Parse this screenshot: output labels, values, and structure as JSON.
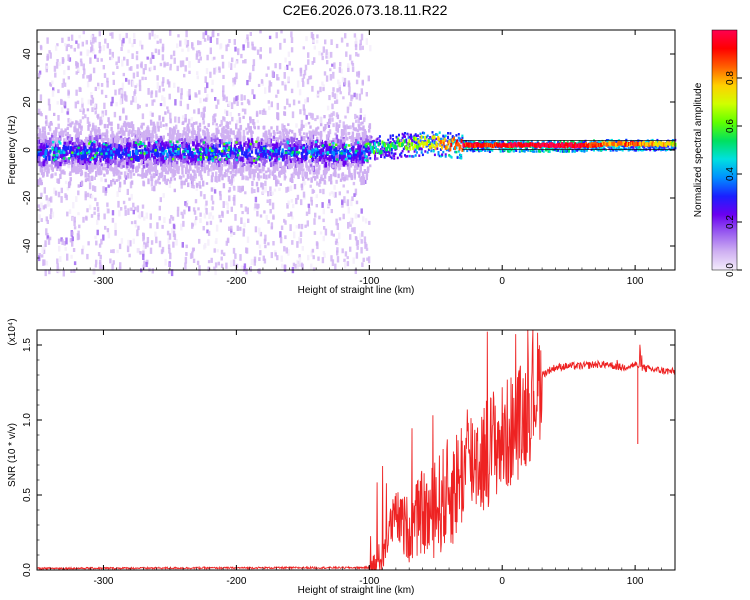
{
  "title": "C2E6.2026.073.18.11.R22",
  "chart_data": [
    {
      "type": "heatmap",
      "xlabel": "Height of straight line (km)",
      "ylabel": "Frequency (Hz)",
      "xlim": [
        -350,
        130
      ],
      "ylim": [
        -50,
        50
      ],
      "x_ticks": [
        -300,
        -200,
        -100,
        0,
        100
      ],
      "y_ticks": [
        -40,
        -20,
        0,
        20,
        40
      ],
      "colorbar": {
        "label": "Normalized spectral amplitude",
        "range": [
          0,
          1
        ],
        "ticks": [
          "0.0",
          "0.2",
          "0.4",
          "0.6",
          "0.8"
        ],
        "colors": [
          "#f4ecfb",
          "#cfb0f2",
          "#9a5ef0",
          "#6a00f0",
          "#1a20ff",
          "#0090ff",
          "#00e0e0",
          "#00e060",
          "#60ff00",
          "#d0ff00",
          "#ffd000",
          "#ff6000",
          "#ff0000",
          "#ff0050"
        ]
      },
      "signal_track": [
        {
          "x": -100,
          "y": 1,
          "amp": 0.5
        },
        {
          "x": -85,
          "y": 1.5,
          "amp": 0.55
        },
        {
          "x": -75,
          "y": 2.5,
          "amp": 0.6
        },
        {
          "x": -60,
          "y": 3,
          "amp": 0.7
        },
        {
          "x": -50,
          "y": 3,
          "amp": 0.75
        },
        {
          "x": -40,
          "y": 2.5,
          "amp": 0.85
        },
        {
          "x": -30,
          "y": 2,
          "amp": 0.9
        },
        {
          "x": -20,
          "y": 2,
          "amp": 0.92
        },
        {
          "x": -10,
          "y": 2,
          "amp": 0.93
        },
        {
          "x": 0,
          "y": 2,
          "amp": 0.95
        },
        {
          "x": 20,
          "y": 2,
          "amp": 0.96
        },
        {
          "x": 40,
          "y": 2,
          "amp": 0.96
        },
        {
          "x": 60,
          "y": 2,
          "amp": 0.95
        },
        {
          "x": 80,
          "y": 2.5,
          "amp": 0.8
        },
        {
          "x": 100,
          "y": 2.5,
          "amp": 0.85
        },
        {
          "x": 120,
          "y": 2.5,
          "amp": 0.75
        },
        {
          "x": 130,
          "y": 2.5,
          "amp": 0.7
        }
      ],
      "noise_region": {
        "x_from": -350,
        "x_to": -100,
        "freq_from": -50,
        "freq_to": 50
      }
    },
    {
      "type": "line",
      "xlabel": "Height of straight line (km)",
      "ylabel": "SNR (10 * v/v)",
      "scale_label": "(x10⁴)",
      "xlim": [
        -350,
        130
      ],
      "ylim": [
        0,
        1.6
      ],
      "x_ticks": [
        -300,
        -200,
        -100,
        0,
        100
      ],
      "y_ticks": [
        "0.0",
        "0.5",
        "1.0",
        "1.5"
      ],
      "color": "#ee2222",
      "series": [
        {
          "name": "SNR",
          "x": [
            -350,
            -100,
            -95,
            -90,
            -85,
            -80,
            -75,
            -70,
            -65,
            -60,
            -55,
            -50,
            -45,
            -40,
            -35,
            -30,
            -25,
            -20,
            -15,
            -10,
            -5,
            0,
            5,
            10,
            15,
            20,
            25,
            30,
            35,
            40,
            50,
            60,
            70,
            80,
            90,
            95,
            100,
            105,
            110,
            120,
            130
          ],
          "y": [
            0.005,
            0.01,
            0.05,
            0.12,
            0.28,
            0.38,
            0.32,
            0.3,
            0.35,
            0.42,
            0.38,
            0.45,
            0.5,
            0.55,
            0.6,
            0.7,
            0.75,
            0.8,
            0.78,
            0.85,
            0.9,
            0.9,
            0.95,
            1.0,
            1.05,
            1.12,
            1.25,
            1.3,
            1.33,
            1.35,
            1.36,
            1.36,
            1.37,
            1.37,
            1.35,
            1.36,
            1.37,
            1.35,
            1.34,
            1.33,
            1.32
          ]
        }
      ]
    }
  ]
}
